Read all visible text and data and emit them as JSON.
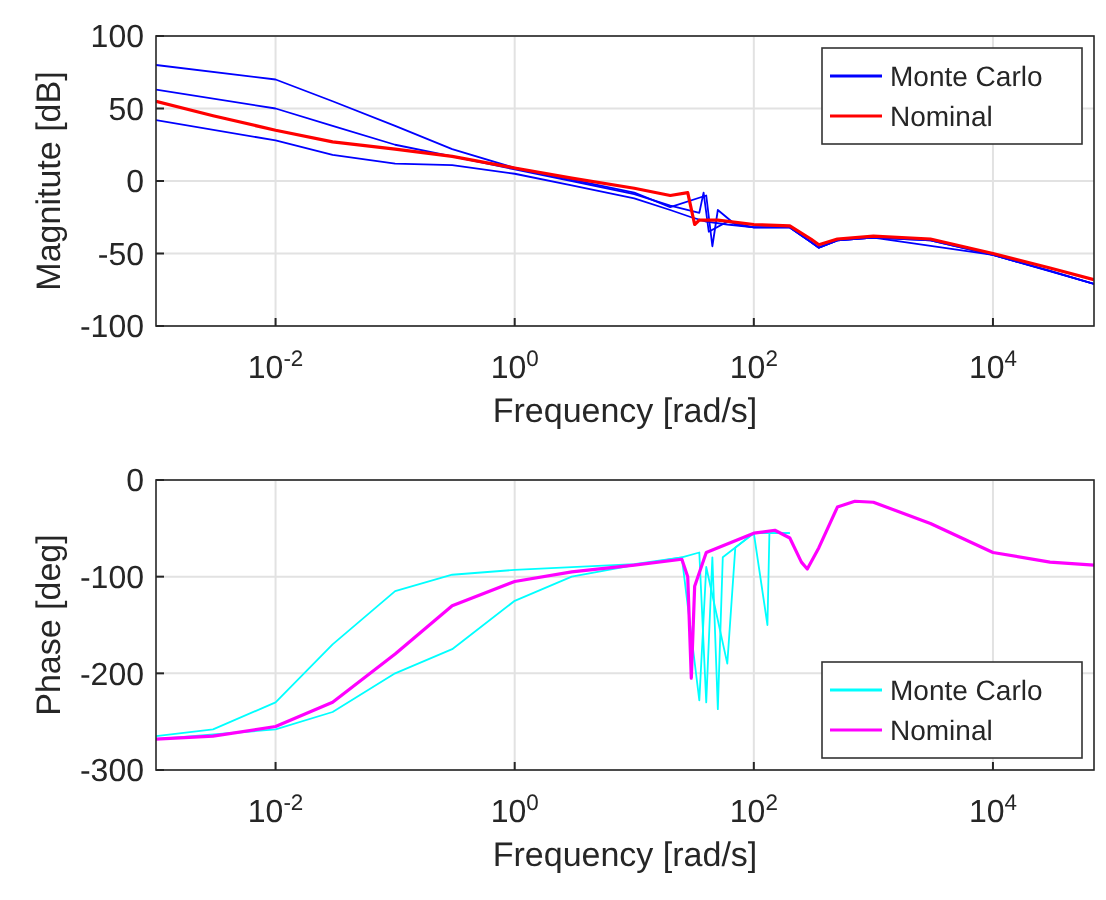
{
  "chart_data": [
    {
      "type": "line",
      "ylabel": "Magnitute [dB]",
      "xlabel": "Frequency [rad/s]",
      "log": "x",
      "grid": true,
      "legend": "top right",
      "line_style": "solid",
      "xlim": [
        0.001,
        70000
      ],
      "xticks": [
        {
          "value": 0.01,
          "label": "10$^{-2}$"
        },
        {
          "value": 1,
          "label": "10$^{0}$"
        },
        {
          "value": 100,
          "label": "10$^{2}$"
        },
        {
          "value": 10000,
          "label": "10$^{4}$"
        }
      ],
      "ylim": [
        -100,
        100
      ],
      "yticks": [
        -100,
        -50,
        0,
        50,
        100
      ],
      "series": [
        {
          "name": "Monte Carlo",
          "color": "#0000ff",
          "x": [
            0.001,
            0.01,
            0.03,
            0.1,
            0.3,
            1,
            3,
            10,
            20,
            40,
            45,
            50,
            70,
            100,
            200,
            300,
            350,
            500,
            1000,
            3000,
            10000,
            30000,
            70000
          ],
          "values": [
            80,
            70,
            55,
            38,
            22,
            9,
            1,
            -8,
            -18,
            -10,
            -45,
            -20,
            -30,
            -32,
            -32,
            -42,
            -46,
            -41,
            -39,
            -41,
            -51,
            -62,
            -71
          ]
        },
        {
          "color": "#0000ff",
          "x": [
            0.001,
            0.01,
            0.03,
            0.1,
            0.3,
            1,
            3,
            10,
            20,
            35,
            38,
            42,
            60,
            100,
            200,
            300,
            350,
            500,
            1000,
            3000,
            10000,
            30000,
            70000
          ],
          "values": [
            63,
            50,
            38,
            25,
            17,
            8,
            0,
            -9,
            -17,
            -22,
            -8,
            -35,
            -28,
            -32,
            -32,
            -42,
            -46,
            -41,
            -39,
            -41,
            -51,
            -62,
            -71
          ]
        },
        {
          "color": "#0000ff",
          "x": [
            0.001,
            0.01,
            0.03,
            0.1,
            0.3,
            1,
            3,
            10,
            20,
            30,
            40,
            60,
            100,
            200,
            300,
            350,
            500,
            1000,
            10000,
            70000
          ],
          "values": [
            42,
            28,
            18,
            12,
            11,
            5,
            -3,
            -12,
            -20,
            -25,
            -28,
            -30,
            -32,
            -32,
            -42,
            -46,
            -41,
            -39,
            -51,
            -71
          ]
        },
        {
          "name": "Nominal",
          "color": "#ff0000",
          "x": [
            0.001,
            0.003,
            0.01,
            0.03,
            0.1,
            0.3,
            1,
            3,
            10,
            20,
            28,
            32,
            35,
            50,
            100,
            200,
            300,
            350,
            500,
            1000,
            3000,
            10000,
            30000,
            70000
          ],
          "values": [
            55,
            45,
            35,
            27,
            22,
            17,
            9,
            2,
            -5,
            -10,
            -8,
            -30,
            -27,
            -27,
            -30,
            -31,
            -40,
            -44,
            -40,
            -38,
            -40,
            -50,
            -60,
            -68
          ]
        }
      ]
    },
    {
      "type": "line",
      "ylabel": "Phase [deg]",
      "xlabel": "Frequency [rad/s]",
      "log": "x",
      "grid": true,
      "legend": "bottom right",
      "line_style": "solid",
      "xlim": [
        0.001,
        70000
      ],
      "xticks": [
        {
          "value": 0.01,
          "label": "10$^{-2}$"
        },
        {
          "value": 1,
          "label": "10$^{0}$"
        },
        {
          "value": 100,
          "label": "10$^{2}$"
        },
        {
          "value": 10000,
          "label": "10$^{4}$"
        }
      ],
      "ylim": [
        -300,
        0
      ],
      "yticks": [
        -300,
        -200,
        -100,
        0
      ],
      "series": [
        {
          "name": "Monte Carlo",
          "color": "#00ffff",
          "x": [
            0.001,
            0.003,
            0.01,
            0.03,
            0.1,
            0.3,
            1,
            10,
            25,
            35,
            40,
            45,
            50,
            55,
            100,
            130,
            135,
            140,
            200
          ],
          "values": [
            -265,
            -258,
            -230,
            -170,
            -115,
            -98,
            -93,
            -87,
            -80,
            -75,
            -230,
            -80,
            -237,
            -80,
            -55,
            -150,
            -55,
            -55,
            -55
          ]
        },
        {
          "color": "#00ffff",
          "x": [
            0.001,
            0.01,
            0.03,
            0.1,
            0.3,
            1,
            3,
            10,
            25,
            35,
            40,
            60,
            70,
            100,
            200
          ],
          "values": [
            -268,
            -258,
            -240,
            -200,
            -175,
            -125,
            -100,
            -88,
            -80,
            -228,
            -90,
            -190,
            -70,
            -55,
            -55
          ]
        },
        {
          "name": "Nominal",
          "color": "#ff00ff",
          "x": [
            0.001,
            0.003,
            0.01,
            0.03,
            0.1,
            0.3,
            1,
            3,
            10,
            25,
            28,
            30,
            32,
            40,
            100,
            150,
            200,
            250,
            280,
            350,
            500,
            700,
            1000,
            3000,
            10000,
            30000,
            70000
          ],
          "values": [
            -268,
            -265,
            -255,
            -230,
            -180,
            -130,
            -105,
            -95,
            -88,
            -82,
            -100,
            -205,
            -110,
            -75,
            -55,
            -52,
            -60,
            -85,
            -92,
            -70,
            -28,
            -22,
            -23,
            -45,
            -75,
            -85,
            -88
          ]
        }
      ]
    }
  ]
}
